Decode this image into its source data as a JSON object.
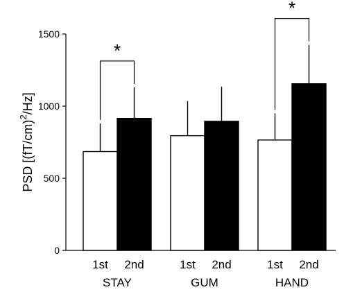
{
  "chart_data": {
    "type": "bar",
    "ylabel_parts": [
      "PSD [(fT/cm)",
      "2",
      "/Hz]"
    ],
    "ylim": [
      0,
      1500
    ],
    "yticks": [
      "0",
      "500",
      "1000",
      "1500"
    ],
    "ytick_values": [
      0,
      500,
      1000,
      1500
    ],
    "groups": [
      {
        "label": "STAY",
        "bars": [
          {
            "label": "1st",
            "value": 685,
            "error": 195,
            "fill": "white"
          },
          {
            "label": "2nd",
            "value": 915,
            "error": 215,
            "fill": "black"
          }
        ],
        "significance": "*"
      },
      {
        "label": "GUM",
        "bars": [
          {
            "label": "1st",
            "value": 795,
            "error": 240,
            "fill": "white"
          },
          {
            "label": "2nd",
            "value": 895,
            "error": 240,
            "fill": "black"
          }
        ],
        "significance": ""
      },
      {
        "label": "HAND",
        "bars": [
          {
            "label": "1st",
            "value": 765,
            "error": 185,
            "fill": "white"
          },
          {
            "label": "2nd",
            "value": 1155,
            "error": 270,
            "fill": "black"
          }
        ],
        "significance": "*"
      }
    ],
    "colors": {
      "white": "#ffffff",
      "black": "#000000",
      "edge": "#000000"
    }
  }
}
